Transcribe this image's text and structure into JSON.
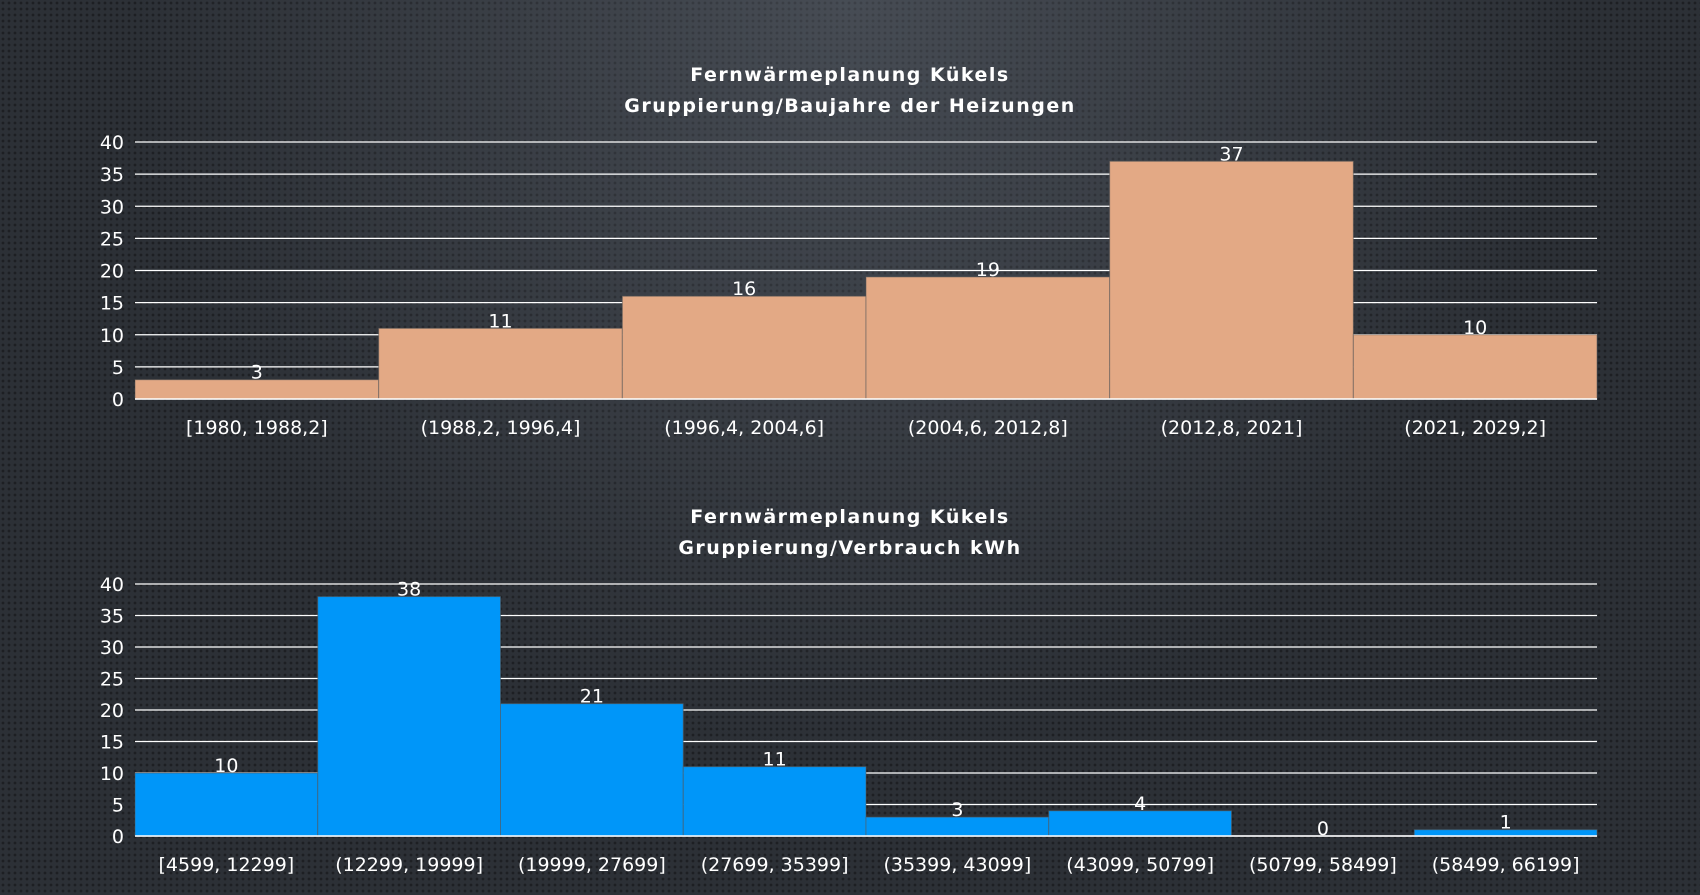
{
  "chart_data": [
    {
      "type": "bar",
      "title": "Fernwärmeplanung Kükels",
      "subtitle": "Gruppierung/Baujahre der Heizungen",
      "categories": [
        "[1980, 1988,2]",
        "(1988,2, 1996,4]",
        "(1996,4, 2004,6]",
        "(2004,6, 2012,8]",
        "(2012,8, 2021]",
        "(2021, 2029,2]"
      ],
      "values": [
        3,
        11,
        16,
        19,
        37,
        10
      ],
      "data_labels": [
        "3",
        "11",
        "16",
        "19",
        "37",
        "10"
      ],
      "yticks": [
        "0",
        "5",
        "10",
        "15",
        "20",
        "25",
        "30",
        "35",
        "40"
      ],
      "ylim": [
        0,
        40
      ],
      "grid": true,
      "bar_color": "#e3a985"
    },
    {
      "type": "bar",
      "title": "Fernwärmeplanung Kükels",
      "subtitle": "Gruppierung/Verbrauch kWh",
      "categories": [
        "[4599, 12299]",
        "(12299, 19999]",
        "(19999, 27699]",
        "(27699, 35399]",
        "(35399, 43099]",
        "(43099, 50799]",
        "(50799, 58499]",
        "(58499, 66199]"
      ],
      "values": [
        10,
        38,
        21,
        11,
        3,
        4,
        0,
        1
      ],
      "data_labels": [
        "10",
        "38",
        "21",
        "11",
        "3",
        "4",
        "0",
        "1"
      ],
      "yticks": [
        "0",
        "5",
        "10",
        "15",
        "20",
        "25",
        "30",
        "35",
        "40"
      ],
      "ylim": [
        0,
        40
      ],
      "grid": true,
      "bar_color": "#0096f9"
    }
  ]
}
